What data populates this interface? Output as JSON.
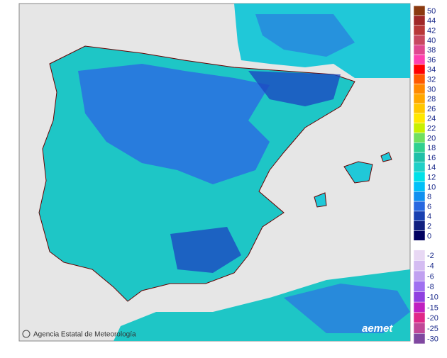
{
  "credit": "Agencia Estatal de Meteorología",
  "logo": "aemet",
  "legend": {
    "positive": [
      {
        "label": 50,
        "color": "#8b3a10"
      },
      {
        "label": 44,
        "color": "#a02828"
      },
      {
        "label": 42,
        "color": "#b83838"
      },
      {
        "label": 40,
        "color": "#c84860"
      },
      {
        "label": 38,
        "color": "#e04890"
      },
      {
        "label": 36,
        "color": "#ff40b0"
      },
      {
        "label": 34,
        "color": "#ff0000"
      },
      {
        "label": 32,
        "color": "#ff5a00"
      },
      {
        "label": 30,
        "color": "#ff8a00"
      },
      {
        "label": 28,
        "color": "#ffa800"
      },
      {
        "label": 26,
        "color": "#ffc800"
      },
      {
        "label": 24,
        "color": "#ffe800"
      },
      {
        "label": 22,
        "color": "#c8f000"
      },
      {
        "label": 20,
        "color": "#70e060"
      },
      {
        "label": 18,
        "color": "#30d090"
      },
      {
        "label": 16,
        "color": "#20c0a8"
      },
      {
        "label": 14,
        "color": "#20d0c8"
      },
      {
        "label": 12,
        "color": "#00e0e8"
      },
      {
        "label": 10,
        "color": "#00c0f8"
      },
      {
        "label": 8,
        "color": "#1090f0"
      },
      {
        "label": 6,
        "color": "#2868e0"
      },
      {
        "label": 4,
        "color": "#1840b0"
      },
      {
        "label": 2,
        "color": "#102080"
      },
      {
        "label": 0,
        "color": "#000060"
      }
    ],
    "negative": [
      {
        "label": -2,
        "color": "#e8d8f4"
      },
      {
        "label": -4,
        "color": "#d4bcf2"
      },
      {
        "label": -6,
        "color": "#c0a0f0"
      },
      {
        "label": -8,
        "color": "#a070f0"
      },
      {
        "label": -10,
        "color": "#9040e0"
      },
      {
        "label": -15,
        "color": "#c020c0"
      },
      {
        "label": -20,
        "color": "#e02888"
      },
      {
        "label": -25,
        "color": "#c04898"
      },
      {
        "label": -30,
        "color": "#8048a0"
      }
    ]
  }
}
